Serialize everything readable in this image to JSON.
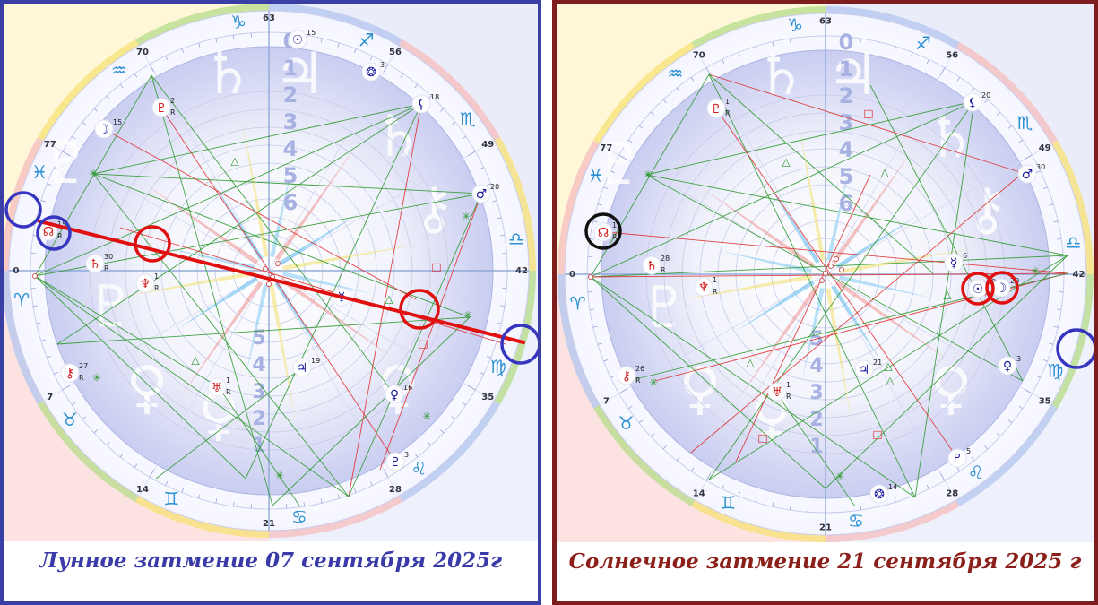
{
  "colors": {
    "left_frame": "#3a3fa6",
    "right_frame": "#7e1d1d",
    "left_caption": "#3a3aa8",
    "right_caption": "#8b1f1a",
    "aspect_green": "#2e9a2e",
    "aspect_red": "#e03030",
    "highlight_red": "#e01010",
    "highlight_blue": "#3535c0",
    "highlight_black": "#111111"
  },
  "charts": [
    {
      "caption": "Лунное затмение 07 сентября 2025г",
      "signs": [
        {
          "glyph": "♈",
          "name": "aries",
          "color": "#2a8fd0"
        },
        {
          "glyph": "♉",
          "name": "taurus",
          "color": "#2a8fd0"
        },
        {
          "glyph": "♊",
          "name": "gemini",
          "color": "#2a8fd0"
        },
        {
          "glyph": "♋",
          "name": "cancer",
          "color": "#2a8fd0"
        },
        {
          "glyph": "♌",
          "name": "leo",
          "color": "#2a8fd0"
        },
        {
          "glyph": "♍",
          "name": "virgo",
          "color": "#2a8fd0"
        },
        {
          "glyph": "♎",
          "name": "libra",
          "color": "#2a8fd0"
        },
        {
          "glyph": "♏",
          "name": "scorpio",
          "color": "#2a8fd0"
        },
        {
          "glyph": "♐",
          "name": "sagittarius",
          "color": "#2a8fd0"
        },
        {
          "glyph": "♑",
          "name": "capricorn",
          "color": "#2a8fd0"
        },
        {
          "glyph": "♒",
          "name": "aquarius",
          "color": "#2a8fd0"
        },
        {
          "glyph": "♓",
          "name": "pisces",
          "color": "#2a8fd0"
        }
      ],
      "degree_labels": [
        "0",
        "7",
        "14",
        "21",
        "28",
        "35",
        "42",
        "49",
        "56",
        "63",
        "70",
        "77"
      ],
      "planets": [
        {
          "name": "moon",
          "glyph": "☽",
          "degree": "15",
          "retro": "",
          "color": "#1a1aa0"
        },
        {
          "name": "sun",
          "glyph": "☉",
          "degree": "15",
          "retro": "",
          "color": "#1a1aa0"
        },
        {
          "name": "north-node",
          "glyph": "☊",
          "degree": "15",
          "retro": "R",
          "color": "#d01818"
        },
        {
          "name": "saturn",
          "glyph": "♄",
          "degree": "30",
          "retro": "R",
          "color": "#d01818"
        },
        {
          "name": "neptune",
          "glyph": "♆",
          "degree": "1",
          "retro": "R",
          "color": "#d01818"
        },
        {
          "name": "pluto",
          "glyph": "♇",
          "degree": "2",
          "retro": "R",
          "color": "#d01818"
        },
        {
          "name": "chiron",
          "glyph": "⚷",
          "degree": "27",
          "retro": "R",
          "color": "#d01818"
        },
        {
          "name": "uranus",
          "glyph": "♅",
          "degree": "1",
          "retro": "R",
          "color": "#d01818"
        },
        {
          "name": "mercury",
          "glyph": "☿",
          "degree": "",
          "retro": "",
          "color": "#1a1aa0"
        },
        {
          "name": "jupiter",
          "glyph": "♃",
          "degree": "19",
          "retro": "",
          "color": "#1a1aa0"
        },
        {
          "name": "venus",
          "glyph": "♀",
          "degree": "16",
          "retro": "",
          "color": "#1a1aa0"
        },
        {
          "name": "proserpina",
          "glyph": "♇",
          "degree": "3",
          "retro": "",
          "color": "#1a1aa0"
        },
        {
          "name": "mars",
          "glyph": "♂",
          "degree": "20",
          "retro": "",
          "color": "#1a1aa0"
        },
        {
          "name": "lilith",
          "glyph": "⚸",
          "degree": "18",
          "retro": "",
          "color": "#1a1aa0"
        },
        {
          "name": "selena",
          "glyph": "❂",
          "degree": "3",
          "retro": "",
          "color": "#1a1aa0"
        }
      ]
    },
    {
      "caption": "Солнечное затмение 21 сентября 2025 г",
      "signs": [
        {
          "glyph": "♈",
          "name": "aries",
          "color": "#2a8fd0"
        },
        {
          "glyph": "♉",
          "name": "taurus",
          "color": "#2a8fd0"
        },
        {
          "glyph": "♊",
          "name": "gemini",
          "color": "#2a8fd0"
        },
        {
          "glyph": "♋",
          "name": "cancer",
          "color": "#2a8fd0"
        },
        {
          "glyph": "♌",
          "name": "leo",
          "color": "#2a8fd0"
        },
        {
          "glyph": "♍",
          "name": "virgo",
          "color": "#2a8fd0"
        },
        {
          "glyph": "♎",
          "name": "libra",
          "color": "#2a8fd0"
        },
        {
          "glyph": "♏",
          "name": "scorpio",
          "color": "#2a8fd0"
        },
        {
          "glyph": "♐",
          "name": "sagittarius",
          "color": "#2a8fd0"
        },
        {
          "glyph": "♑",
          "name": "capricorn",
          "color": "#2a8fd0"
        },
        {
          "glyph": "♒",
          "name": "aquarius",
          "color": "#2a8fd0"
        },
        {
          "glyph": "♓",
          "name": "pisces",
          "color": "#2a8fd0"
        }
      ],
      "degree_labels": [
        "0",
        "7",
        "14",
        "21",
        "28",
        "35",
        "42",
        "49",
        "56",
        "63",
        "70",
        "77"
      ],
      "planets": [
        {
          "name": "sun",
          "glyph": "☉",
          "degree": "29",
          "retro": "",
          "color": "#1a1aa0"
        },
        {
          "name": "moon",
          "glyph": "☽",
          "degree": "29",
          "retro": "",
          "color": "#1a1aa0"
        },
        {
          "name": "north-node",
          "glyph": "☊",
          "degree": "15",
          "retro": "R",
          "color": "#d01818"
        },
        {
          "name": "saturn",
          "glyph": "♄",
          "degree": "28",
          "retro": "R",
          "color": "#d01818"
        },
        {
          "name": "neptune",
          "glyph": "♆",
          "degree": "1",
          "retro": "R",
          "color": "#d01818"
        },
        {
          "name": "pluto",
          "glyph": "♇",
          "degree": "1",
          "retro": "R",
          "color": "#d01818"
        },
        {
          "name": "chiron",
          "glyph": "⚷",
          "degree": "26",
          "retro": "R",
          "color": "#d01818"
        },
        {
          "name": "uranus",
          "glyph": "♅",
          "degree": "1",
          "retro": "R",
          "color": "#d01818"
        },
        {
          "name": "mercury",
          "glyph": "☿",
          "degree": "6",
          "retro": "",
          "color": "#1a1aa0"
        },
        {
          "name": "jupiter",
          "glyph": "♃",
          "degree": "21",
          "retro": "",
          "color": "#1a1aa0"
        },
        {
          "name": "venus",
          "glyph": "♀",
          "degree": "3",
          "retro": "",
          "color": "#1a1aa0"
        },
        {
          "name": "proserpina",
          "glyph": "♇",
          "degree": "5",
          "retro": "",
          "color": "#1a1aa0"
        },
        {
          "name": "mars",
          "glyph": "♂",
          "degree": "30",
          "retro": "",
          "color": "#1a1aa0"
        },
        {
          "name": "lilith",
          "glyph": "⚸",
          "degree": "20",
          "retro": "",
          "color": "#1a1aa0"
        },
        {
          "name": "selena",
          "glyph": "❂",
          "degree": "14",
          "retro": "",
          "color": "#1a1aa0"
        }
      ]
    }
  ]
}
